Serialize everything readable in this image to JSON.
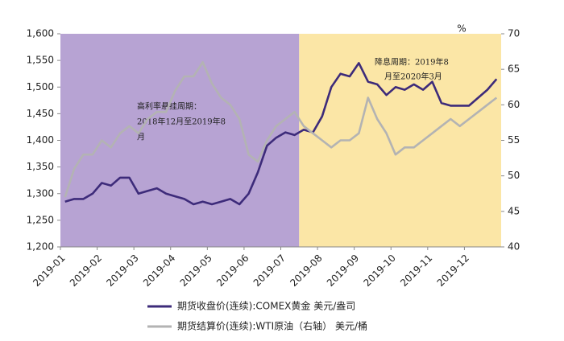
{
  "chart_data": {
    "type": "line",
    "categories": [
      "2019-01",
      null,
      null,
      null,
      "2019-02",
      null,
      null,
      null,
      "2019-03",
      null,
      null,
      null,
      "2019-04",
      null,
      null,
      null,
      "2019-05",
      null,
      null,
      null,
      "2019-06",
      null,
      null,
      null,
      "2019-07",
      null,
      null,
      null,
      "2019-08",
      null,
      null,
      null,
      "2019-09",
      null,
      null,
      null,
      "2019-10",
      null,
      null,
      null,
      "2019-11",
      null,
      null,
      null,
      "2019-12",
      null,
      null,
      null
    ],
    "series": [
      {
        "name": "期货收盘价(连续):COMEX黄金 美元/盎司",
        "color": "#3d2b7a",
        "axis": "y",
        "values": [
          1285,
          1290,
          1290,
          1300,
          1320,
          1315,
          1330,
          1330,
          1300,
          1305,
          1310,
          1300,
          1295,
          1290,
          1280,
          1285,
          1280,
          1285,
          1290,
          1280,
          1300,
          1340,
          1390,
          1405,
          1415,
          1410,
          1420,
          1415,
          1445,
          1500,
          1525,
          1520,
          1545,
          1510,
          1505,
          1485,
          1500,
          1495,
          1505,
          1495,
          1510,
          1470,
          1465,
          1465,
          1465,
          1480,
          1495,
          1515
        ]
      },
      {
        "name": "期货结算价(连续):WTI原油（右轴） 美元/桶",
        "color": "#b3b3b3",
        "axis": "y2",
        "values": [
          47,
          51,
          53,
          53,
          55,
          54,
          56,
          57,
          56,
          58,
          59,
          59,
          62,
          64,
          64,
          66,
          63,
          61,
          60,
          58,
          53,
          52,
          55,
          57,
          58,
          59,
          57,
          56,
          55,
          54,
          55,
          55,
          56,
          61,
          58,
          56,
          53,
          54,
          54,
          55,
          56,
          57,
          58,
          57,
          58,
          59,
          60,
          61
        ]
      }
    ],
    "ylim": [
      1200,
      1600
    ],
    "yticks": [
      {
        "value": 1200,
        "label": "1,200"
      },
      {
        "value": 1250,
        "label": "1,250"
      },
      {
        "value": 1300,
        "label": "1,300"
      },
      {
        "value": 1350,
        "label": "1,350"
      },
      {
        "value": 1400,
        "label": "1,400"
      },
      {
        "value": 1450,
        "label": "1,450"
      },
      {
        "value": 1500,
        "label": "1,500"
      },
      {
        "value": 1550,
        "label": "1,550"
      },
      {
        "value": 1600,
        "label": "1,600"
      }
    ],
    "y2lim": [
      40,
      70
    ],
    "y2ticks": [
      40,
      45,
      50,
      55,
      60,
      65,
      70
    ],
    "y2label": "%",
    "regions": [
      {
        "from": 0,
        "to": 26,
        "color": "#b7a3d3",
        "annotation": [
          "高利率悬挂周期：",
          "2018年12月至2019年8",
          "月"
        ]
      },
      {
        "from": 26,
        "to": 48,
        "color": "#fbe6a6",
        "annotation": [
          "降息周期：2019年8",
          "月至2020年3月"
        ]
      }
    ]
  }
}
